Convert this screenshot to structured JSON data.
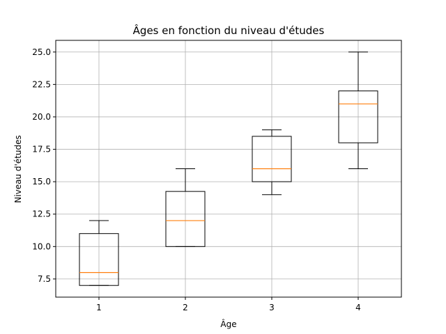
{
  "chart_data": {
    "type": "boxplot",
    "title": "Âges en fonction du niveau d'études",
    "xlabel": "Âge",
    "ylabel": "Niveau d'études",
    "categories": [
      "1",
      "2",
      "3",
      "4"
    ],
    "boxes": [
      {
        "whislo": 7,
        "q1": 7,
        "med": 8,
        "q3": 11,
        "whishi": 12
      },
      {
        "whislo": 10,
        "q1": 10,
        "med": 12,
        "q3": 14.25,
        "whishi": 16
      },
      {
        "whislo": 14,
        "q1": 15,
        "med": 16,
        "q3": 18.5,
        "whishi": 19
      },
      {
        "whislo": 16,
        "q1": 18,
        "med": 21,
        "q3": 22,
        "whishi": 25
      }
    ],
    "ylim": [
      6.1,
      25.9
    ],
    "xlim": [
      0.5,
      4.5
    ],
    "yticks": [
      7.5,
      10.0,
      12.5,
      15.0,
      17.5,
      20.0,
      22.5,
      25.0
    ],
    "ytick_labels": [
      "7.5",
      "10.0",
      "12.5",
      "15.0",
      "17.5",
      "20.0",
      "22.5",
      "25.0"
    ],
    "grid": true,
    "colors": {
      "box": "#000000",
      "median": "#ff7f0e",
      "grid": "#b0b0b0"
    }
  }
}
